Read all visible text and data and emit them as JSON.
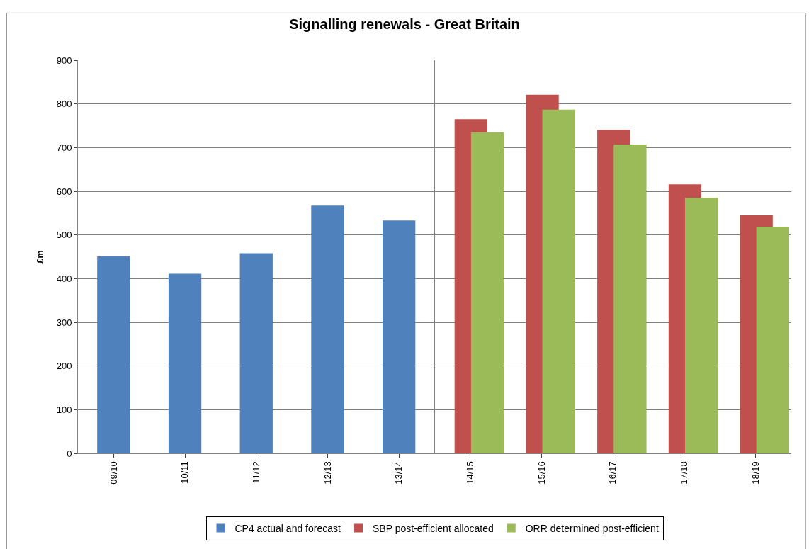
{
  "chart_data": {
    "type": "bar",
    "title": "Signalling renewals - Great Britain",
    "ylabel": "£m",
    "categories": [
      "09/10",
      "10/11",
      "11/12",
      "12/13",
      "13/14",
      "14/15",
      "15/16",
      "16/17",
      "17/18",
      "18/19"
    ],
    "series": [
      {
        "name": "CP4 actual and forecast",
        "color": "#4f81bd",
        "values": [
          451,
          411,
          458,
          567,
          533,
          null,
          null,
          null,
          null,
          null
        ]
      },
      {
        "name": "SBP post-efficient allocated",
        "color": "#c0504d",
        "values": [
          null,
          null,
          null,
          null,
          null,
          765,
          821,
          741,
          616,
          545
        ]
      },
      {
        "name": "ORR determined post-efficient",
        "color": "#9bbb59",
        "values": [
          null,
          null,
          null,
          null,
          null,
          735,
          787,
          707,
          585,
          519
        ]
      }
    ],
    "ylim": [
      0,
      900
    ],
    "yticks": [
      0,
      100,
      200,
      300,
      400,
      500,
      600,
      700,
      800,
      900
    ],
    "grid": "y",
    "legend": "bottom"
  }
}
